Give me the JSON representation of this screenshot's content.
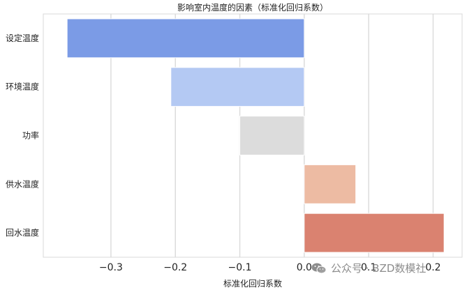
{
  "chart_data": {
    "type": "bar",
    "orientation": "horizontal",
    "title": "影响室内温度的因素（标准化回归系数）",
    "xlabel": "标准化回归系数",
    "ylabel": "",
    "categories": [
      "设定温度",
      "环境温度",
      "功率",
      "供水温度",
      "回水温度"
    ],
    "values": [
      -0.368,
      -0.207,
      -0.1,
      0.08,
      0.217
    ],
    "colors": [
      "#7b9be6",
      "#b4c9f3",
      "#dcdcdc",
      "#edbba3",
      "#da8270"
    ],
    "xlim": [
      -0.405,
      0.245
    ],
    "xticks": [
      -0.3,
      -0.2,
      -0.1,
      0.0,
      0.1,
      0.2
    ],
    "xtick_labels": [
      "−0.3",
      "−0.2",
      "−0.1",
      "0.0",
      "0.1",
      "0.2"
    ],
    "grid": "vertical"
  },
  "watermark": {
    "text": "公众号 · BZD数模社",
    "icon": "wechat-icon"
  }
}
